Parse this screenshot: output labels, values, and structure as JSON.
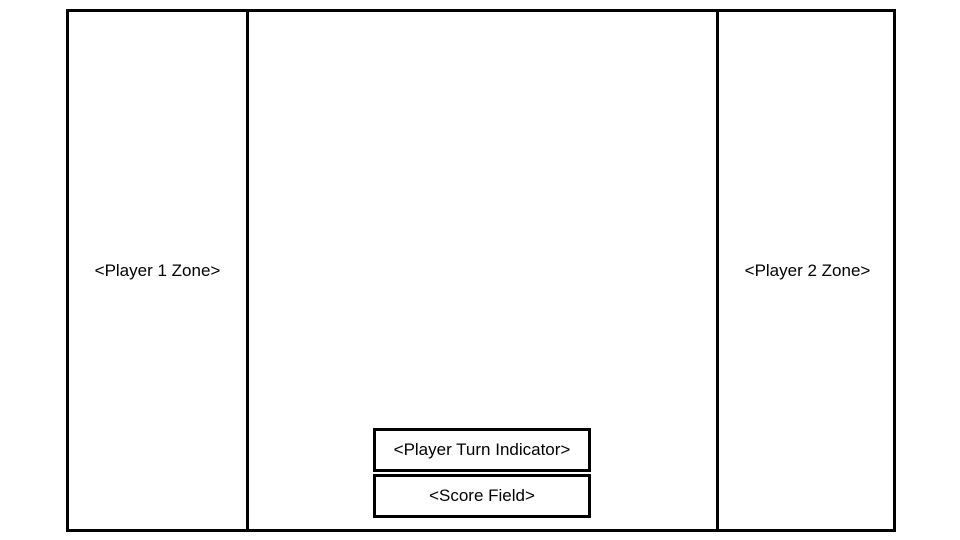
{
  "player1_zone": {
    "label": "<Player 1 Zone>"
  },
  "player2_zone": {
    "label": "<Player 2 Zone>"
  },
  "turn_indicator": {
    "label": "<Player Turn Indicator>"
  },
  "score_field": {
    "label": "<Score Field>"
  },
  "colors": {
    "border": "#000000",
    "background": "#ffffff"
  }
}
